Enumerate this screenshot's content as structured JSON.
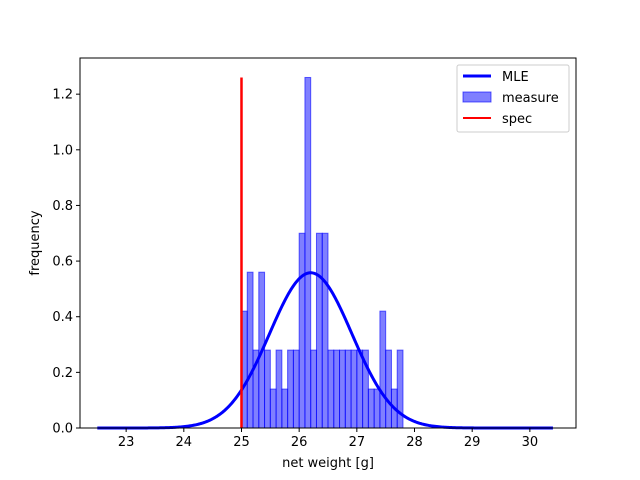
{
  "chart_data": {
    "type": "histogram",
    "xlabel": "net weight [g]",
    "ylabel": "frequency",
    "xlim": [
      22.2,
      30.8
    ],
    "ylim": [
      0.0,
      1.33
    ],
    "xticks": [
      23,
      24,
      25,
      26,
      27,
      28,
      29,
      30
    ],
    "yticks": [
      0.0,
      0.2,
      0.4,
      0.6,
      0.8,
      1.0,
      1.2
    ],
    "x_tick_labels": [
      "23",
      "24",
      "25",
      "26",
      "27",
      "28",
      "29",
      "30"
    ],
    "y_tick_labels": [
      "0.0",
      "0.2",
      "0.4",
      "0.6",
      "0.8",
      "1.0",
      "1.2"
    ],
    "legend_position": "upper right",
    "series": [
      {
        "name": "MLE",
        "kind": "line",
        "color": "#0000ff",
        "mean": 26.2,
        "std": 0.715,
        "x_range": [
          22.5,
          30.4
        ]
      },
      {
        "name": "measure",
        "kind": "bars",
        "color": "#0000ff",
        "bin_width": 0.1,
        "bins": [
          {
            "x": 25.0,
            "value": 0.42
          },
          {
            "x": 25.1,
            "value": 0.56
          },
          {
            "x": 25.2,
            "value": 0.28
          },
          {
            "x": 25.3,
            "value": 0.56
          },
          {
            "x": 25.4,
            "value": 0.28
          },
          {
            "x": 25.5,
            "value": 0.14
          },
          {
            "x": 25.6,
            "value": 0.28
          },
          {
            "x": 25.7,
            "value": 0.14
          },
          {
            "x": 25.8,
            "value": 0.28
          },
          {
            "x": 25.9,
            "value": 0.28
          },
          {
            "x": 26.0,
            "value": 0.7
          },
          {
            "x": 26.1,
            "value": 1.26
          },
          {
            "x": 26.2,
            "value": 0.28
          },
          {
            "x": 26.3,
            "value": 0.7
          },
          {
            "x": 26.4,
            "value": 0.7
          },
          {
            "x": 26.5,
            "value": 0.28
          },
          {
            "x": 26.6,
            "value": 0.28
          },
          {
            "x": 26.7,
            "value": 0.28
          },
          {
            "x": 26.8,
            "value": 0.28
          },
          {
            "x": 26.9,
            "value": 0.28
          },
          {
            "x": 27.0,
            "value": 0.28
          },
          {
            "x": 27.1,
            "value": 0.28
          },
          {
            "x": 27.2,
            "value": 0.14
          },
          {
            "x": 27.3,
            "value": 0.14
          },
          {
            "x": 27.4,
            "value": 0.42
          },
          {
            "x": 27.5,
            "value": 0.28
          },
          {
            "x": 27.6,
            "value": 0.14
          },
          {
            "x": 27.7,
            "value": 0.28
          }
        ]
      },
      {
        "name": "spec",
        "kind": "vline",
        "color": "#ff0000",
        "x": 25.0,
        "y_range": [
          0.0,
          1.26
        ]
      }
    ]
  }
}
